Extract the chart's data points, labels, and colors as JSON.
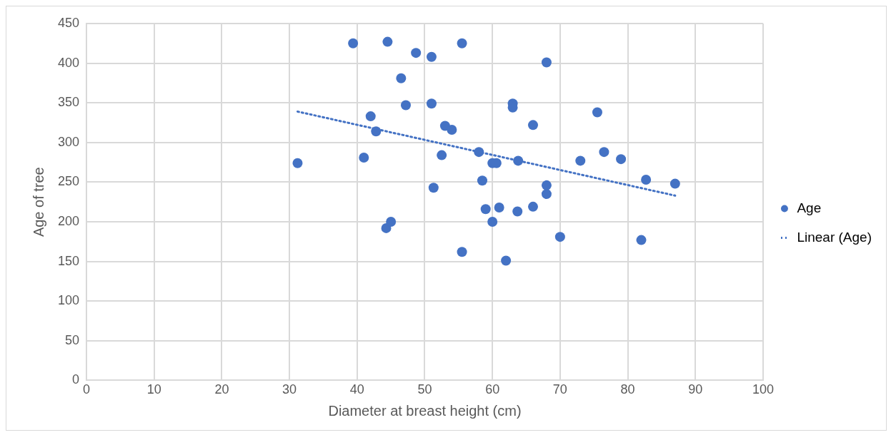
{
  "chart_data": {
    "type": "scatter",
    "xlabel": "Diameter at breast height (cm)",
    "ylabel": "Age of tree",
    "xlim": [
      0,
      100
    ],
    "xticks": [
      0,
      10,
      20,
      30,
      40,
      50,
      60,
      70,
      80,
      90,
      100
    ],
    "ylim": [
      0,
      450
    ],
    "yticks": [
      0,
      50,
      100,
      150,
      200,
      250,
      300,
      350,
      400,
      450
    ],
    "grid": true,
    "legend": "right",
    "marker": "circle",
    "series": [
      {
        "name": "Age",
        "color": "#4472c4",
        "x": [
          31.2,
          39.4,
          44.5,
          48.7,
          51,
          55.5,
          46.5,
          47.2,
          51,
          42,
          42.8,
          53,
          54,
          41,
          52.5,
          51.3,
          44.3,
          45,
          55.5,
          58,
          60,
          60.6,
          63.8,
          63,
          63,
          66,
          68,
          58.5,
          59,
          61,
          60,
          63.7,
          66,
          68,
          68,
          62,
          70,
          73,
          75.5,
          76.5,
          79,
          82.7,
          87,
          82
        ],
        "values": [
          274,
          425,
          427,
          413,
          408,
          425,
          381,
          347,
          349,
          333,
          314,
          321,
          316,
          281,
          284,
          243,
          192,
          200,
          162,
          288,
          274,
          274,
          277,
          349,
          344,
          322,
          401,
          252,
          216,
          218,
          200,
          213,
          219,
          246,
          235,
          151,
          181,
          277,
          338,
          288,
          279,
          253,
          248,
          177
        ]
      },
      {
        "name": "Linear (Age)",
        "color": "#4472c4",
        "type": "line",
        "marker": "none",
        "line_style": "dotted",
        "x": [
          31.2,
          87
        ],
        "values": [
          339,
          233
        ]
      }
    ]
  }
}
